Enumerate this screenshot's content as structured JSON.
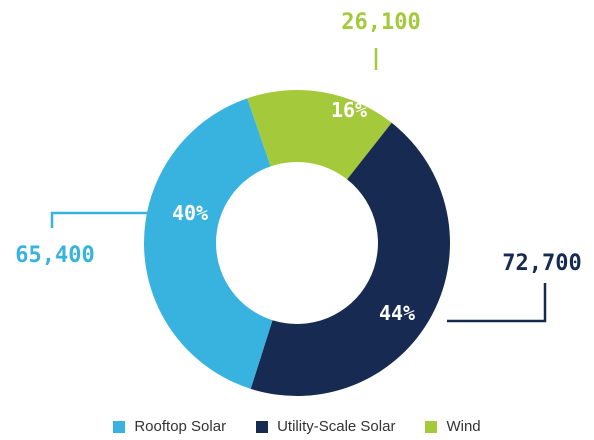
{
  "chart_data": {
    "type": "pie",
    "style": "donut",
    "series": [
      {
        "name": "Rooftop Solar",
        "value": 65400,
        "value_label": "65,400",
        "percent_label": "40%",
        "color": "#38b3df"
      },
      {
        "name": "Utility-Scale Solar",
        "value": 72700,
        "value_label": "72,700",
        "percent_label": "44%",
        "color": "#172b52"
      },
      {
        "name": "Wind",
        "value": 26100,
        "value_label": "26,100",
        "percent_label": "16%",
        "color": "#a4c93a"
      }
    ],
    "legend_position": "bottom"
  }
}
